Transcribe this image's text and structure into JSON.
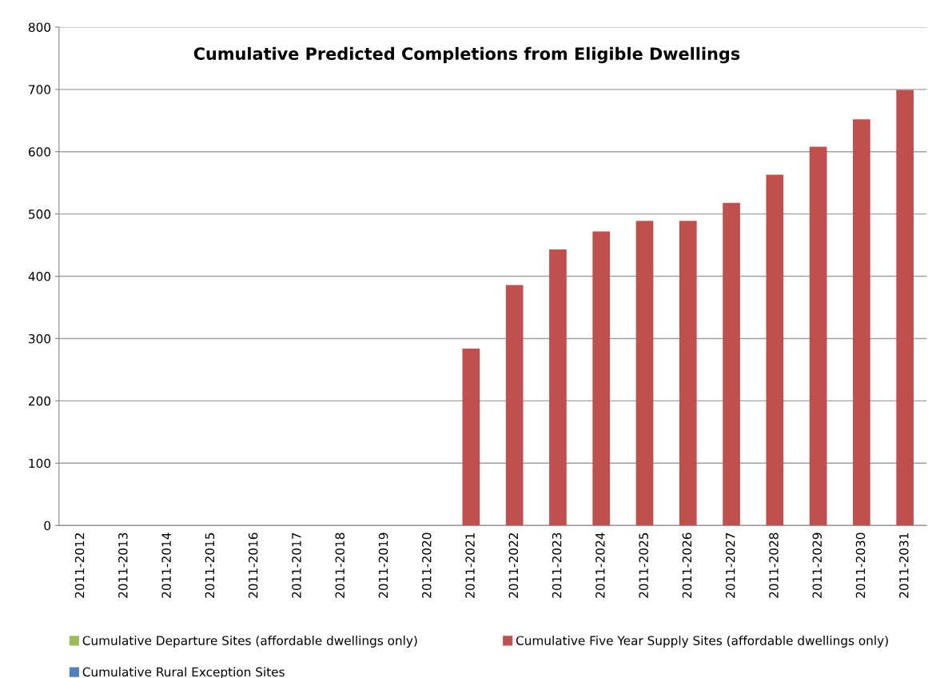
{
  "chart_data": {
    "type": "bar",
    "title": "Cumulative Predicted Completions from Eligible Dwellings",
    "categories": [
      "2011-2012",
      "2011-2013",
      "2011-2014",
      "2011-2015",
      "2011-2016",
      "2011-2017",
      "2011-2018",
      "2011-2019",
      "2011-2020",
      "2011-2021",
      "2011-2022",
      "2011-2023",
      "2011-2024",
      "2011-2025",
      "2011-2026",
      "2011-2027",
      "2011-2028",
      "2011-2029",
      "2011-2030",
      "2011-2031"
    ],
    "stacked": true,
    "series": [
      {
        "name": "Cumulative Departure Sites (affordable dwellings only)",
        "color": "#9bbb59",
        "values": [
          0,
          0,
          0,
          0,
          0,
          0,
          0,
          0,
          0,
          0,
          0,
          0,
          0,
          0,
          0,
          0,
          0,
          0,
          0,
          0
        ]
      },
      {
        "name": "Cumulative Rural Exception Sites",
        "color": "#4f81bd",
        "values": [
          0,
          0,
          0,
          0,
          0,
          0,
          0,
          0,
          0,
          0,
          0,
          0,
          0,
          0,
          0,
          0,
          0,
          0,
          0,
          0
        ]
      },
      {
        "name": "Cumulative Five Year Supply Sites (affordable dwellings only)",
        "color": "#c0504d",
        "values": [
          0,
          0,
          0,
          0,
          0,
          0,
          0,
          0,
          0,
          284,
          386,
          443,
          472,
          489,
          489,
          518,
          563,
          608,
          652,
          699
        ]
      }
    ],
    "ylim": [
      0,
      800
    ],
    "yticks": [
      0,
      100,
      200,
      300,
      400,
      500,
      600,
      700,
      800
    ],
    "grid": "y",
    "legend": "bottom"
  }
}
